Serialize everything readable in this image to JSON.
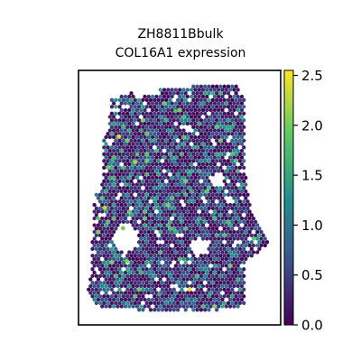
{
  "chart_data": {
    "type": "scatter",
    "plot_kind": "spatial hexbin (spot expression map)",
    "title_line1": "ZH8811Bbulk",
    "title_line2": "COL16A1 expression",
    "xlabel": "",
    "ylabel": "",
    "axes_ticks_visible": false,
    "grid": false,
    "colormap": "viridis",
    "colorbar": {
      "position": "right",
      "range": [
        0.0,
        2.55
      ],
      "ticks": [
        0.0,
        0.5,
        1.0,
        1.5,
        2.0,
        2.5
      ],
      "tick_labels": [
        "0.0",
        "0.5",
        "1.0",
        "1.5",
        "2.0",
        "2.5"
      ]
    },
    "colors": {
      "low": "#440154",
      "mid_low": "#3b528b",
      "mid": "#21908d",
      "mid_high": "#5dc963",
      "high": "#fde725"
    },
    "highlight_spots": [
      {
        "x": 0.2,
        "y": 0.74,
        "value": 2.4
      },
      {
        "x": 0.28,
        "y": 0.64,
        "value": 2.2
      },
      {
        "x": 0.29,
        "y": 0.67,
        "value": 1.9
      },
      {
        "x": 0.13,
        "y": 0.46,
        "value": 2.3
      },
      {
        "x": 0.22,
        "y": 0.38,
        "value": 2.0
      },
      {
        "x": 0.24,
        "y": 0.25,
        "value": 2.1
      },
      {
        "x": 0.55,
        "y": 0.14,
        "value": 2.5
      },
      {
        "x": 0.48,
        "y": 0.84,
        "value": 1.8
      },
      {
        "x": 0.17,
        "y": 0.65,
        "value": 1.7
      },
      {
        "x": 0.4,
        "y": 0.12,
        "value": 1.6
      }
    ]
  }
}
